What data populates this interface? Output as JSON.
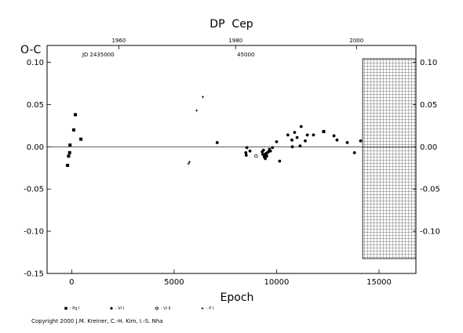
{
  "chart_data": {
    "type": "scatter",
    "title": "DP  Cep",
    "xlabel": "Epoch",
    "ylabel": "O-C",
    "xlim": [
      -1200,
      16800
    ],
    "ylim": [
      -0.15,
      0.12
    ],
    "x_ticks": [
      0,
      5000,
      10000,
      15000
    ],
    "y_ticks": [
      -0.15,
      -0.1,
      -0.05,
      0.0,
      0.05,
      0.1
    ],
    "y_tick_labels": [
      "-0.15",
      "-0.10",
      "-0.05",
      "0.00",
      "0.05",
      "0.10"
    ],
    "right_y_ticks": [
      -0.1,
      -0.05,
      0.0,
      0.05,
      0.1
    ],
    "right_y_tick_labels": [
      "-0.10",
      "-0.05",
      "0.00",
      "0.05",
      "0.10"
    ],
    "top_axis": {
      "ticks": [
        {
          "label": "1960",
          "epoch": 2300
        },
        {
          "label": "1980",
          "epoch": 8000
        },
        {
          "label": "2000",
          "epoch": 13900
        }
      ],
      "jd_labels": [
        {
          "text": "JD 2435000",
          "epoch": 1300
        },
        {
          "text": "45000",
          "epoch": 8500
        }
      ]
    },
    "grid": false,
    "hatched_region": [
      14200,
      16800
    ],
    "reference_line": 0.0,
    "series": [
      {
        "name": ": Pg I",
        "marker": "square",
        "points": [
          [
            -200,
            -0.022
          ],
          [
            -150,
            -0.011
          ],
          [
            -100,
            -0.007
          ],
          [
            -80,
            0.002
          ],
          [
            100,
            0.02
          ],
          [
            180,
            0.038
          ],
          [
            450,
            0.009
          ],
          [
            12300,
            0.018
          ]
        ]
      },
      {
        "name": ": Vi I",
        "marker": "circle",
        "points": [
          [
            7100,
            0.005
          ],
          [
            8500,
            -0.007
          ],
          [
            8520,
            -0.01
          ],
          [
            8550,
            -0.001
          ],
          [
            8700,
            -0.005
          ],
          [
            9300,
            -0.006
          ],
          [
            9330,
            -0.009
          ],
          [
            9360,
            -0.004
          ],
          [
            9400,
            -0.012
          ],
          [
            9430,
            -0.01
          ],
          [
            9450,
            -0.014
          ],
          [
            9480,
            -0.008
          ],
          [
            9520,
            -0.011
          ],
          [
            9550,
            -0.007
          ],
          [
            9600,
            -0.006
          ],
          [
            9650,
            -0.003
          ],
          [
            9700,
            -0.005
          ],
          [
            9800,
            -0.001
          ],
          [
            10000,
            0.006
          ],
          [
            10150,
            -0.017
          ],
          [
            10550,
            0.014
          ],
          [
            10750,
            0.008
          ],
          [
            10770,
            0.0
          ],
          [
            10880,
            0.017
          ],
          [
            11000,
            0.011
          ],
          [
            11150,
            0.001
          ],
          [
            11200,
            0.024
          ],
          [
            11400,
            0.007
          ],
          [
            11500,
            0.014
          ],
          [
            11800,
            0.014
          ],
          [
            12800,
            0.013
          ],
          [
            12950,
            0.008
          ],
          [
            13450,
            0.005
          ],
          [
            13800,
            -0.007
          ],
          [
            14100,
            0.007
          ]
        ]
      },
      {
        "name": ": Vi II",
        "marker": "open-circle",
        "points": [
          [
            9000,
            -0.011
          ]
        ]
      },
      {
        "name": ": P I",
        "marker": "plus",
        "points": [
          [
            5700,
            -0.02
          ],
          [
            5750,
            -0.018
          ],
          [
            6100,
            0.043
          ],
          [
            6400,
            0.059
          ]
        ]
      }
    ],
    "annotations": [
      "Copyright 2000 J.M. Kreiner, C.-H. Kim, I.-S. Nha"
    ]
  }
}
